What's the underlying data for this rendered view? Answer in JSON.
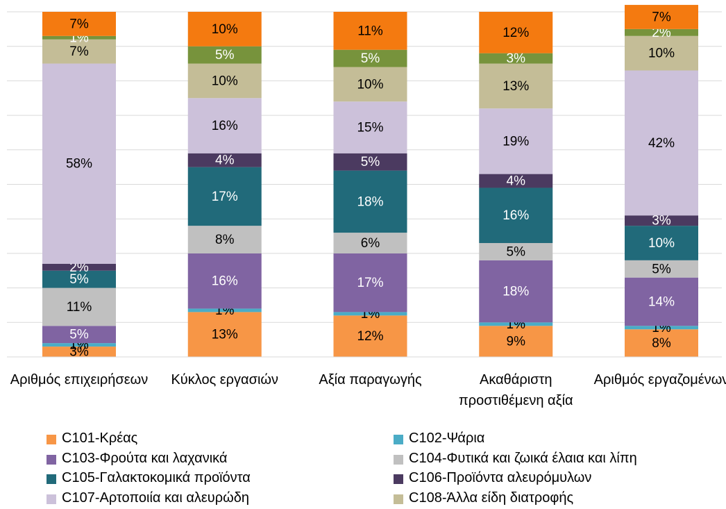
{
  "chart_data": {
    "type": "stacked_bar",
    "categories": [
      "Αριθμός επιχειρήσεων",
      "Κύκλος εργασιών",
      "Αξία παραγωγής",
      "Ακαθάριστη προστιθέμενη αξία",
      "Αριθμός εργαζομένων"
    ],
    "ylim": [
      0,
      100
    ],
    "yticks": [
      0,
      10,
      20,
      30,
      40,
      50,
      60,
      70,
      80,
      90,
      100
    ],
    "grid": true,
    "series": [
      {
        "name": "C101-Κρέας",
        "color": "#f79646",
        "label_color": "#000000",
        "values": [
          3,
          13,
          12,
          9,
          8
        ],
        "value_labels": [
          "3%",
          "13%",
          "12%",
          "9%",
          "8%"
        ]
      },
      {
        "name": "C102-Ψάρια",
        "color": "#4bacc6",
        "label_color": "#000000",
        "values": [
          1,
          1,
          1,
          1,
          1
        ],
        "value_labels": [
          "1%",
          "1%",
          "1%",
          "1%",
          "1%"
        ]
      },
      {
        "name": "C103-Φρούτα και λαχανικά",
        "color": "#8064a2",
        "label_color": "#ffffff",
        "values": [
          5,
          16,
          17,
          18,
          14
        ],
        "value_labels": [
          "5%",
          "16%",
          "17%",
          "18%",
          "14%"
        ]
      },
      {
        "name": "C104-Φυτικά και ζωικά έλαια και λίπη",
        "color": "#c0c0c0",
        "label_color": "#000000",
        "values": [
          11,
          8,
          6,
          5,
          5
        ],
        "value_labels": [
          "11%",
          "8%",
          "6%",
          "5%",
          "5%"
        ]
      },
      {
        "name": "C105-Γαλακτοκομικά προϊόντα",
        "color": "#216a7a",
        "label_color": "#ffffff",
        "values": [
          5,
          17,
          18,
          16,
          10
        ],
        "value_labels": [
          "5%",
          "17%",
          "18%",
          "16%",
          "10%"
        ]
      },
      {
        "name": "C106-Προϊόντα αλευρόμυλων",
        "color": "#4b3a60",
        "label_color": "#ffffff",
        "values": [
          2,
          4,
          5,
          4,
          3
        ],
        "value_labels": [
          "2%",
          "4%",
          "5%",
          "4%",
          "3%"
        ]
      },
      {
        "name": "C107-Αρτοποιία και αλευρώδη",
        "color": "#ccc1da",
        "label_color": "#000000",
        "values": [
          58,
          16,
          15,
          19,
          42
        ],
        "value_labels": [
          "58%",
          "16%",
          "15%",
          "19%",
          "42%"
        ]
      },
      {
        "name": "C108-Άλλα είδη διατροφής",
        "color": "#c4bd97",
        "label_color": "#000000",
        "values": [
          7,
          10,
          10,
          13,
          10
        ],
        "value_labels": [
          "7%",
          "10%",
          "10%",
          "13%",
          "10%"
        ]
      },
      {
        "color": "#77933c",
        "label_color": "#ffffff",
        "values": [
          1,
          5,
          5,
          3,
          2
        ],
        "value_labels": [
          "1%",
          "5%",
          "5%",
          "3%",
          "2%"
        ]
      },
      {
        "color": "#f47a10",
        "label_color": "#000000",
        "values": [
          7,
          10,
          11,
          12,
          7
        ],
        "value_labels": [
          "7%",
          "10%",
          "11%",
          "12%",
          "7%"
        ]
      }
    ]
  }
}
